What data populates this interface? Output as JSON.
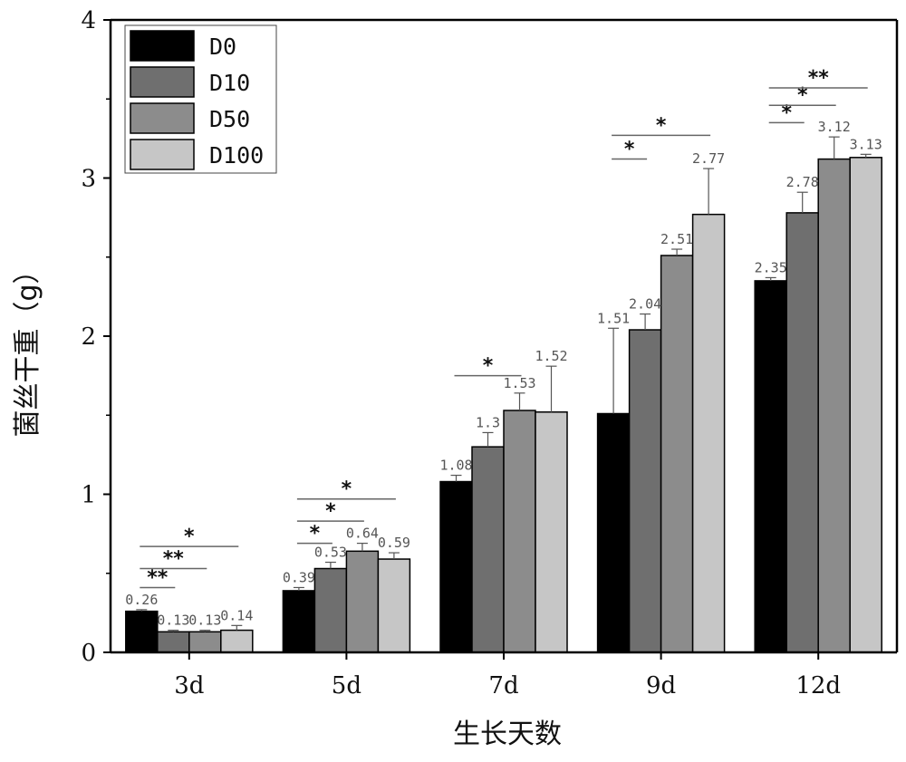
{
  "chart_data": {
    "type": "bar",
    "xlabel": "生长天数",
    "ylabel": "菌丝干重（g）",
    "ylim": [
      0,
      4
    ],
    "yticks": [
      "0",
      "1",
      "2",
      "3",
      "4"
    ],
    "categories": [
      "3d",
      "5d",
      "7d",
      "9d",
      "12d"
    ],
    "legend_position": "top-left",
    "grid": false,
    "series": [
      {
        "name": "D0",
        "color": "#000000",
        "values": [
          0.26,
          0.39,
          1.08,
          1.51,
          2.35
        ],
        "errors": [
          0.01,
          0.02,
          0.04,
          0.54,
          0.02
        ],
        "labels": [
          "0.26",
          "0.39",
          "1.08",
          "1.51",
          "2.35"
        ]
      },
      {
        "name": "D10",
        "color": "#6f6f6f",
        "values": [
          0.13,
          0.53,
          1.3,
          2.04,
          2.78
        ],
        "errors": [
          0.01,
          0.04,
          0.09,
          0.1,
          0.13
        ],
        "labels": [
          "0.13",
          "0.53",
          "1.3",
          "2.04",
          "2.78"
        ]
      },
      {
        "name": "D50",
        "color": "#8c8c8c",
        "values": [
          0.13,
          0.64,
          1.53,
          2.51,
          3.12
        ],
        "errors": [
          0.01,
          0.05,
          0.11,
          0.04,
          0.14
        ],
        "labels": [
          "0.13",
          "0.64",
          "1.53",
          "2.51",
          "3.12"
        ]
      },
      {
        "name": "D100",
        "color": "#c6c6c6",
        "values": [
          0.14,
          0.59,
          1.52,
          2.77,
          3.13
        ],
        "errors": [
          0.03,
          0.04,
          0.29,
          0.29,
          0.02
        ],
        "labels": [
          "0.14",
          "0.59",
          "1.52",
          "2.77",
          "3.13"
        ]
      }
    ],
    "significance": [
      {
        "category": 0,
        "from": 0,
        "to": 1,
        "label": "**",
        "y": 0.41
      },
      {
        "category": 0,
        "from": 0,
        "to": 2,
        "label": "**",
        "y": 0.53
      },
      {
        "category": 0,
        "from": 0,
        "to": 3,
        "label": "*",
        "y": 0.67
      },
      {
        "category": 1,
        "from": 0,
        "to": 1,
        "label": "*",
        "y": 0.69
      },
      {
        "category": 1,
        "from": 0,
        "to": 2,
        "label": "*",
        "y": 0.83
      },
      {
        "category": 1,
        "from": 0,
        "to": 3,
        "label": "*",
        "y": 0.97
      },
      {
        "category": 2,
        "from": 0,
        "to": 2,
        "label": "*",
        "y": 1.75
      },
      {
        "category": 3,
        "from": 0,
        "to": 1,
        "label": "*",
        "y": 3.12
      },
      {
        "category": 3,
        "from": 0,
        "to": 3,
        "label": "*",
        "y": 3.27
      },
      {
        "category": 4,
        "from": 0,
        "to": 1,
        "label": "*",
        "y": 3.35
      },
      {
        "category": 4,
        "from": 0,
        "to": 2,
        "label": "*",
        "y": 3.46
      },
      {
        "category": 4,
        "from": 0,
        "to": 3,
        "label": "**",
        "y": 3.57
      }
    ]
  }
}
